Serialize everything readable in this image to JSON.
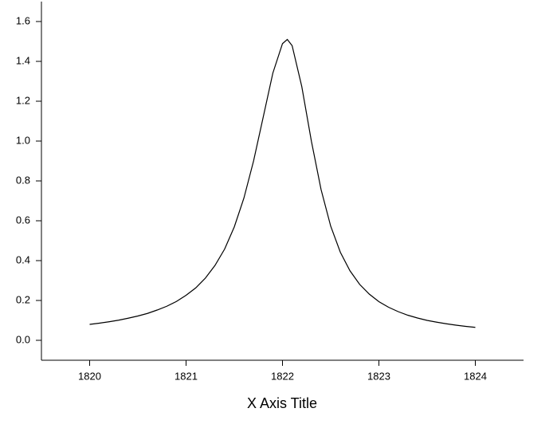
{
  "chart_data": {
    "type": "line",
    "x_label": "X Axis Title",
    "x": [
      1820,
      1820.1,
      1820.2,
      1820.3,
      1820.4,
      1820.5,
      1820.6,
      1820.7,
      1820.8,
      1820.9,
      1821,
      1821.1,
      1821.2,
      1821.3,
      1821.4,
      1821.5,
      1821.6,
      1821.7,
      1821.8,
      1821.9,
      1822,
      1822.05,
      1822.1,
      1822.2,
      1822.3,
      1822.4,
      1822.5,
      1822.6,
      1822.7,
      1822.8,
      1822.9,
      1823,
      1823.1,
      1823.2,
      1823.3,
      1823.4,
      1823.5,
      1823.6,
      1823.7,
      1823.8,
      1823.9,
      1824
    ],
    "values": [
      0.08,
      0.086,
      0.093,
      0.101,
      0.111,
      0.122,
      0.135,
      0.152,
      0.171,
      0.195,
      0.226,
      0.263,
      0.312,
      0.376,
      0.458,
      0.569,
      0.714,
      0.9,
      1.12,
      1.341,
      1.489,
      1.51,
      1.479,
      1.274,
      0.999,
      0.757,
      0.573,
      0.442,
      0.349,
      0.281,
      0.232,
      0.194,
      0.166,
      0.144,
      0.126,
      0.112,
      0.1,
      0.091,
      0.083,
      0.076,
      0.07,
      0.065
    ],
    "color": "#000000",
    "xlim": [
      1819.5,
      1824.5
    ],
    "xticks": [
      1820,
      1821,
      1822,
      1823,
      1824
    ],
    "ylim": [
      -0.1,
      1.7
    ],
    "yticks": [
      {
        "value": 0,
        "label": "0.0"
      },
      0.2,
      0.4,
      0.6,
      0.8,
      {
        "value": 1,
        "label": "1.0"
      },
      1.2,
      1.4,
      1.6
    ],
    "grid": false
  }
}
